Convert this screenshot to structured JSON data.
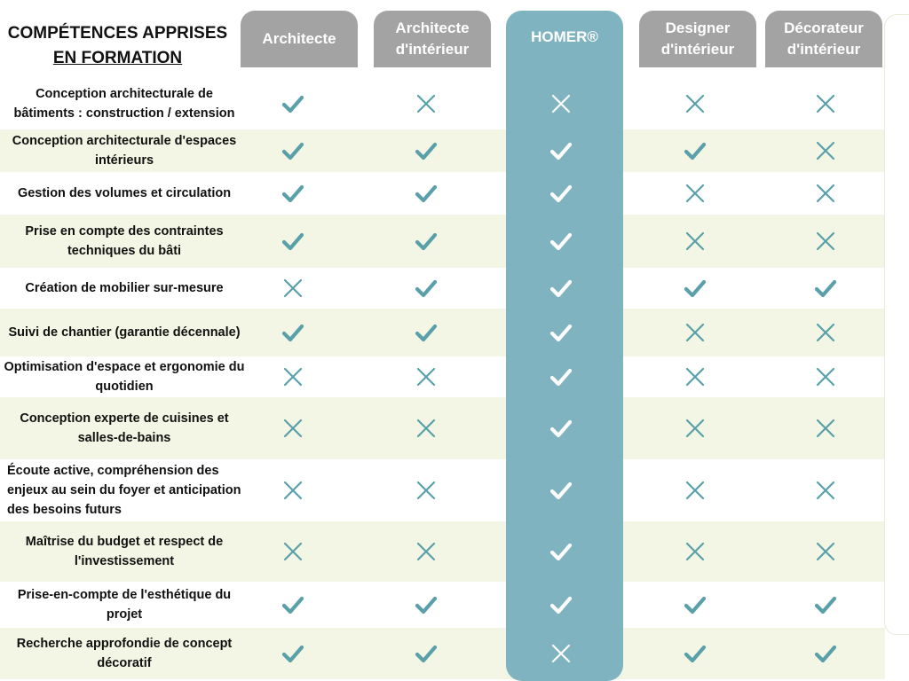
{
  "title": {
    "line1": "COMPÉTENCES APPRISES",
    "line2": "EN FORMATION"
  },
  "columns": [
    {
      "key": "architecte",
      "label": "Architecte"
    },
    {
      "key": "archi_int",
      "label": "Architecte d'intérieur"
    },
    {
      "key": "homer",
      "label": "HOMER®"
    },
    {
      "key": "designer",
      "label": "Designer d'intérieur"
    },
    {
      "key": "decorateur",
      "label": "Décorateur d'intérieur"
    }
  ],
  "colors": {
    "header_grey": "#a3a3a3",
    "homer_teal": "#7fb3bf",
    "mark_teal": "#5aa0aa",
    "band": "#f3f6e4"
  },
  "rows": [
    {
      "label": "Conception architecturale de bâtiments : construction / extension",
      "values": [
        true,
        false,
        false,
        false,
        false
      ]
    },
    {
      "label": "Conception architecturale d'espaces intérieurs",
      "values": [
        true,
        true,
        true,
        true,
        false
      ]
    },
    {
      "label": "Gestion des volumes et circulation",
      "values": [
        true,
        true,
        true,
        false,
        false
      ]
    },
    {
      "label": "Prise en compte des contraintes techniques du bâti",
      "values": [
        true,
        true,
        true,
        false,
        false
      ]
    },
    {
      "label": "Création de mobilier sur-mesure",
      "values": [
        false,
        true,
        true,
        true,
        true
      ]
    },
    {
      "label": "Suivi de chantier (garantie décennale)",
      "values": [
        true,
        true,
        true,
        false,
        false
      ]
    },
    {
      "label": "Optimisation d'espace et ergonomie du quotidien",
      "values": [
        false,
        false,
        true,
        false,
        false
      ]
    },
    {
      "label": "Conception experte de cuisines et salles-de-bains",
      "values": [
        false,
        false,
        true,
        false,
        false
      ]
    },
    {
      "label": "Écoute active, compréhension des enjeux au sein du foyer et anticipation des besoins futurs",
      "values": [
        false,
        false,
        true,
        false,
        false
      ]
    },
    {
      "label": "Maîtrise du budget et respect de l'investissement",
      "values": [
        false,
        false,
        true,
        false,
        false
      ]
    },
    {
      "label": "Prise-en-compte de l'esthétique du projet",
      "values": [
        true,
        true,
        true,
        true,
        true
      ]
    },
    {
      "label": "Recherche approfondie de concept décoratif",
      "values": [
        true,
        true,
        false,
        true,
        true
      ]
    }
  ]
}
